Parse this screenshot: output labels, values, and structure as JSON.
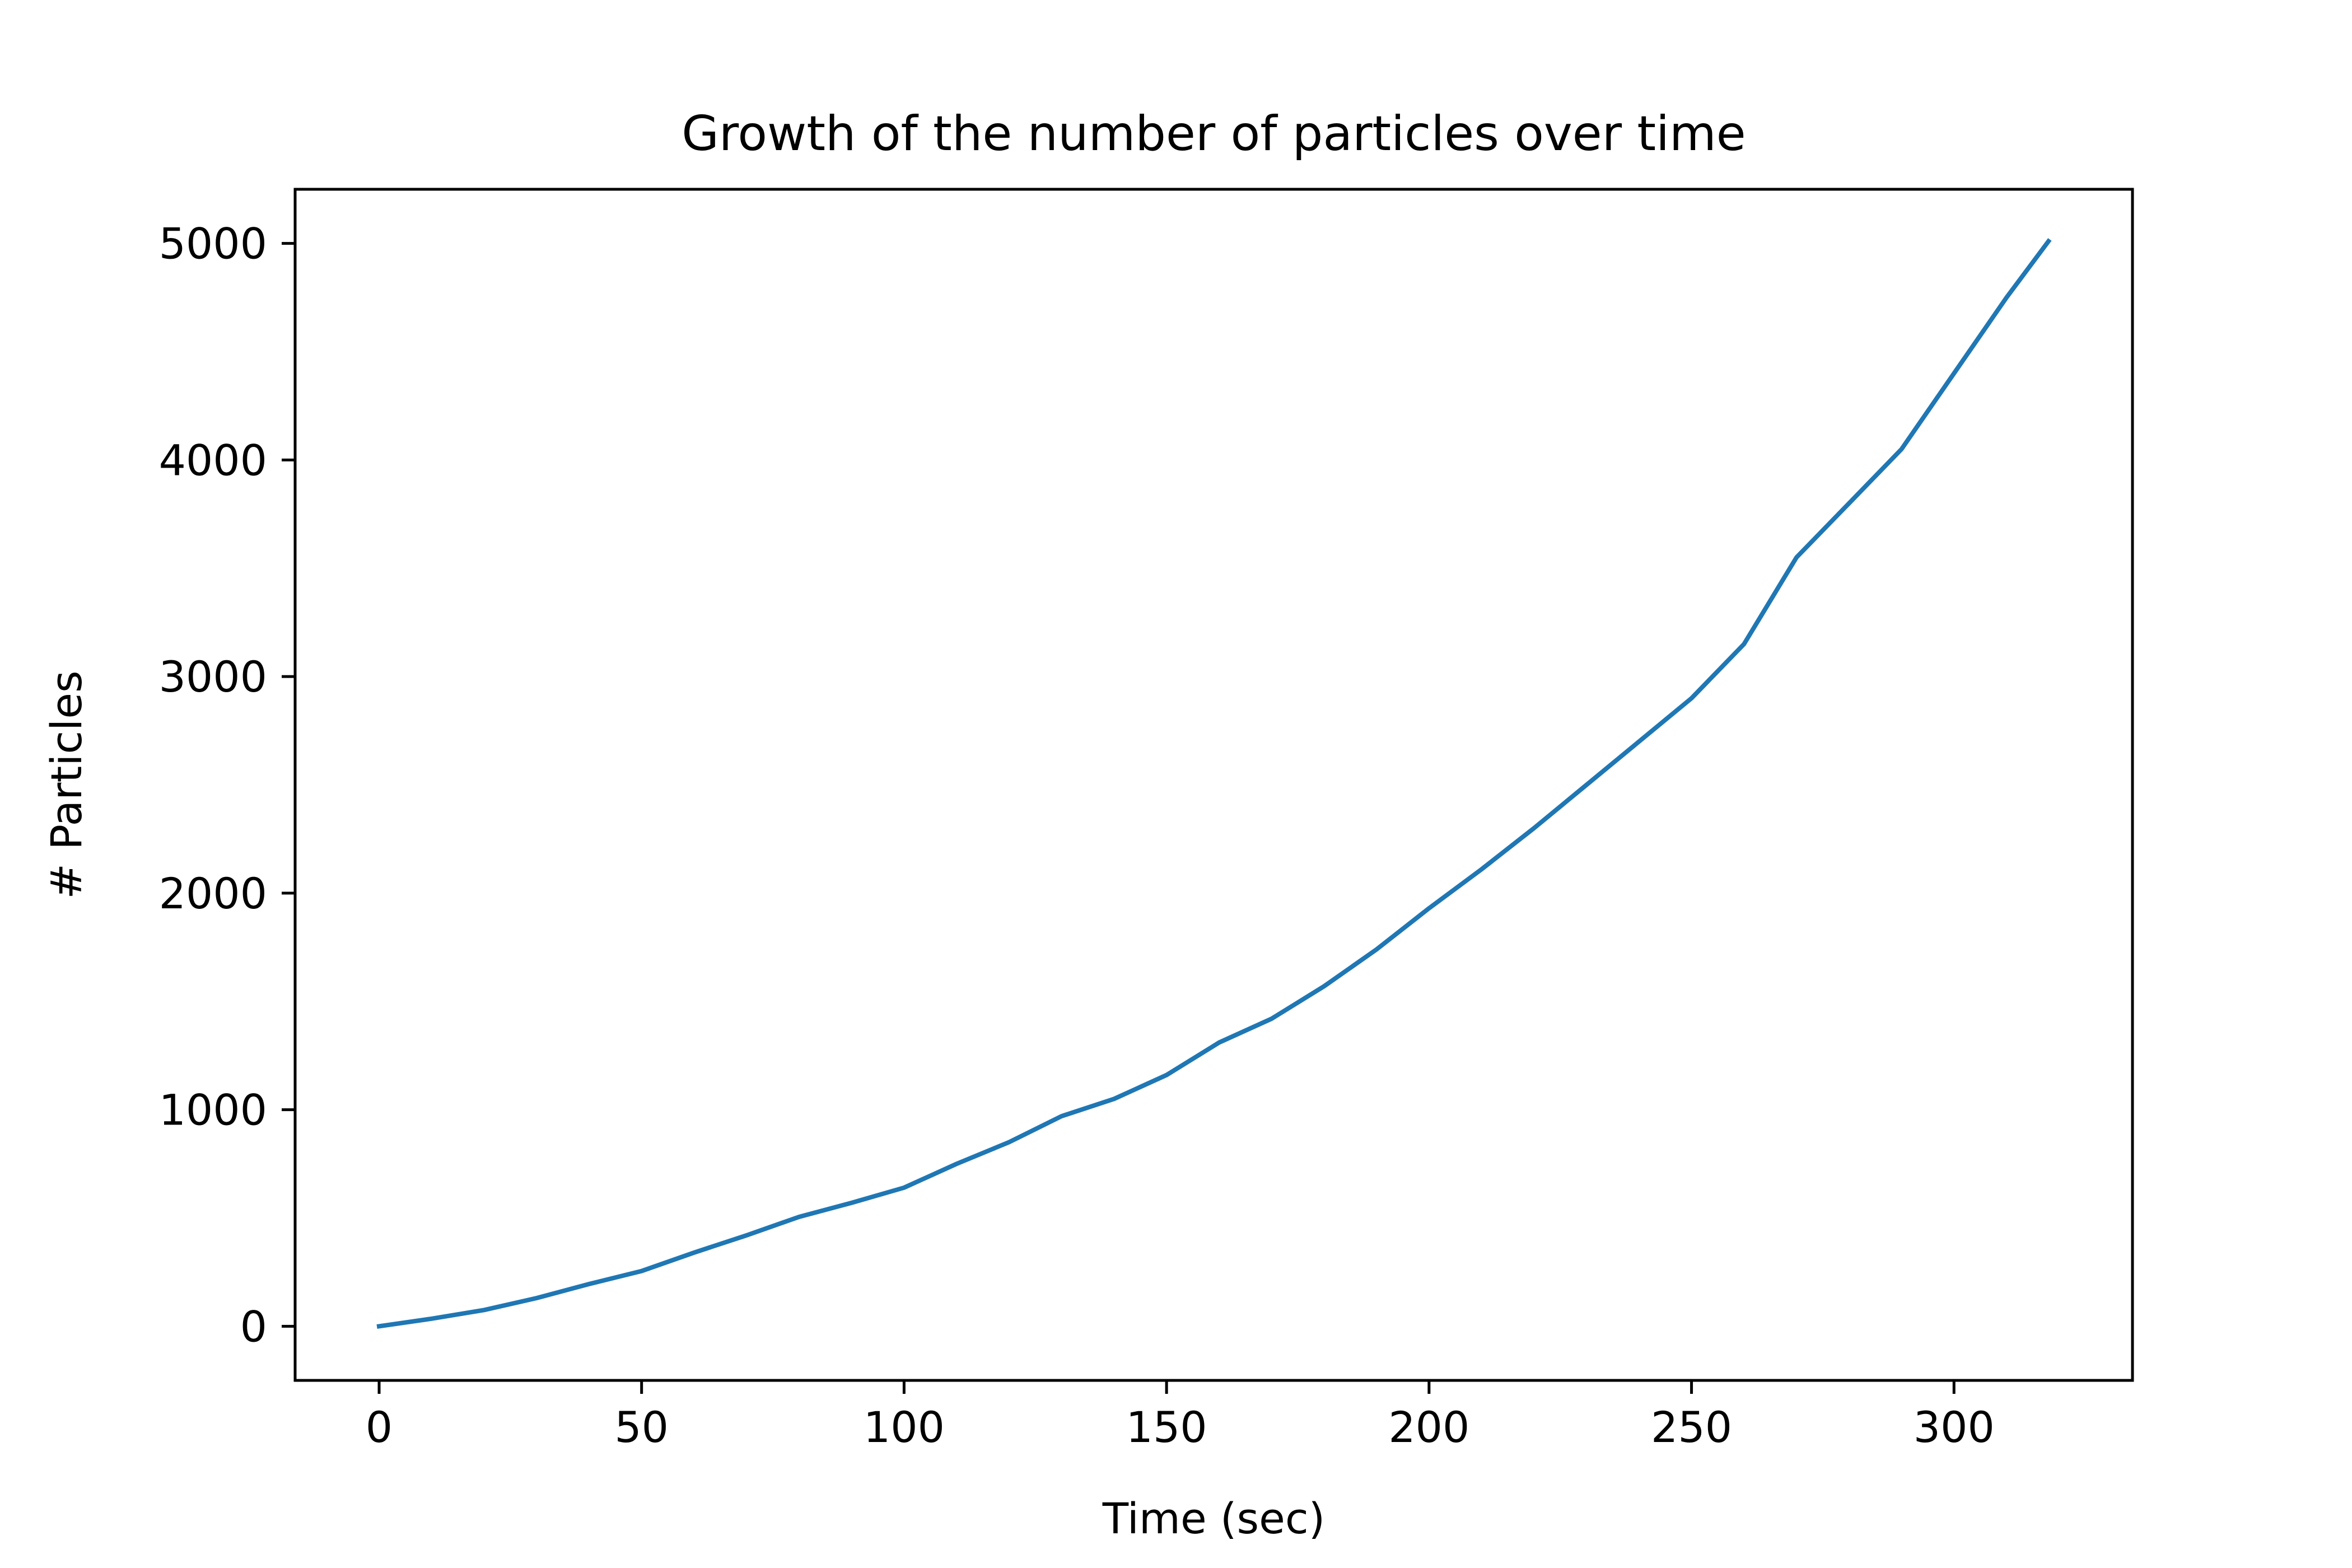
{
  "chart_data": {
    "type": "line",
    "title": "Growth of the number of particles over time",
    "xlabel": "Time (sec)",
    "ylabel": "# Particles",
    "xlim": [
      -16,
      334
    ],
    "ylim": [
      -250,
      5250
    ],
    "xticks": [
      0,
      50,
      100,
      150,
      200,
      250,
      300
    ],
    "yticks": [
      0,
      1000,
      2000,
      3000,
      4000,
      5000
    ],
    "grid": false,
    "line_color": "#1f77b4",
    "series": [
      {
        "x": [
          0,
          10,
          20,
          30,
          40,
          50,
          60,
          70,
          80,
          90,
          100,
          110,
          120,
          130,
          140,
          150,
          160,
          170,
          180,
          190,
          200,
          210,
          220,
          230,
          240,
          250,
          260,
          270,
          280,
          290,
          300,
          310,
          318
        ],
        "y": [
          0,
          35,
          75,
          130,
          195,
          255,
          340,
          420,
          505,
          570,
          640,
          750,
          850,
          970,
          1050,
          1160,
          1310,
          1420,
          1570,
          1740,
          1930,
          2110,
          2300,
          2500,
          2700,
          2900,
          3150,
          3550,
          3800,
          4050,
          4400,
          4750,
          5010
        ]
      }
    ]
  }
}
